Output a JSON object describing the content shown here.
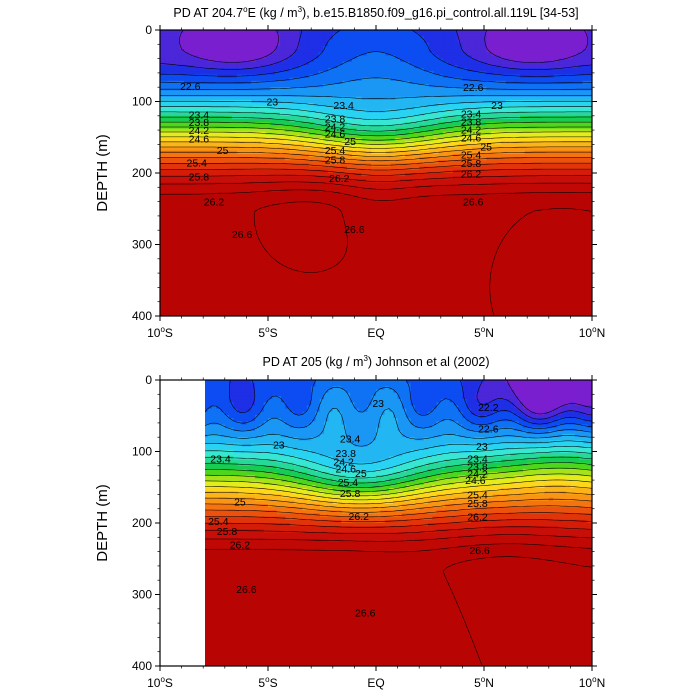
{
  "chart_data": [
    {
      "type": "contour",
      "title_prefix": "PD AT 204.7",
      "title_degree": "o",
      "title_mid": "E (kg / m",
      "title_sup": "3",
      "title_suffix": "), b.e15.B1850.f09_g16.pi_control.all.119L [34-53]",
      "ylabel": "DEPTH (m)",
      "yticks": [
        "0",
        "100",
        "200",
        "300",
        "400"
      ],
      "ylim": [
        400,
        0
      ],
      "xlim": [
        -10,
        10
      ],
      "xticks": [
        {
          "value": -10,
          "text": "10",
          "deg": "o",
          "hemi": "S"
        },
        {
          "value": -5,
          "text": "5",
          "deg": "o",
          "hemi": "S"
        },
        {
          "value": 0,
          "text": "EQ",
          "deg": "",
          "hemi": ""
        },
        {
          "value": 5,
          "text": "5",
          "deg": "o",
          "hemi": "N"
        },
        {
          "value": 10,
          "text": "10",
          "deg": "o",
          "hemi": "N"
        }
      ],
      "contour_interval": 0.2,
      "levels_from": 22.2,
      "levels_to": 26.8,
      "contour_labels": [
        {
          "text": "22.6",
          "x": -8.6,
          "y": 78
        },
        {
          "text": "23",
          "x": -4.8,
          "y": 100
        },
        {
          "text": "23.4",
          "x": -8.2,
          "y": 118
        },
        {
          "text": "23.8",
          "x": -8.2,
          "y": 129
        },
        {
          "text": "24.2",
          "x": -8.2,
          "y": 140
        },
        {
          "text": "24.6",
          "x": -8.2,
          "y": 152
        },
        {
          "text": "25",
          "x": -7.1,
          "y": 168
        },
        {
          "text": "25.4",
          "x": -8.3,
          "y": 185
        },
        {
          "text": "25.8",
          "x": -8.2,
          "y": 205
        },
        {
          "text": "26.2",
          "x": -7.5,
          "y": 240
        },
        {
          "text": "26.6",
          "x": -6.2,
          "y": 285
        },
        {
          "text": "23.4",
          "x": -1.5,
          "y": 105
        },
        {
          "text": "23.8",
          "x": -1.9,
          "y": 124
        },
        {
          "text": "24.2",
          "x": -1.9,
          "y": 135
        },
        {
          "text": "24.6",
          "x": -1.9,
          "y": 145
        },
        {
          "text": "25",
          "x": -1.2,
          "y": 155
        },
        {
          "text": "25.4",
          "x": -1.9,
          "y": 168
        },
        {
          "text": "25.8",
          "x": -1.9,
          "y": 181
        },
        {
          "text": "26.2",
          "x": -1.7,
          "y": 207
        },
        {
          "text": "26.6",
          "x": -1.0,
          "y": 278
        },
        {
          "text": "22.6",
          "x": 4.5,
          "y": 80
        },
        {
          "text": "23",
          "x": 5.6,
          "y": 105
        },
        {
          "text": "23.4",
          "x": 4.4,
          "y": 117
        },
        {
          "text": "23.8",
          "x": 4.4,
          "y": 128
        },
        {
          "text": "24.2",
          "x": 4.4,
          "y": 139
        },
        {
          "text": "24.6",
          "x": 4.4,
          "y": 150
        },
        {
          "text": "25",
          "x": 5.1,
          "y": 163
        },
        {
          "text": "25.4",
          "x": 4.4,
          "y": 174
        },
        {
          "text": "25.8",
          "x": 4.4,
          "y": 186
        },
        {
          "text": "26.2",
          "x": 4.4,
          "y": 201
        },
        {
          "text": "26.6",
          "x": 4.5,
          "y": 240
        }
      ]
    },
    {
      "type": "contour",
      "title_prefix": "PD AT 205 (kg / m",
      "title_sup": "3",
      "title_suffix": ") Johnson et al (2002)",
      "ylabel": "DEPTH (m)",
      "yticks": [
        "0",
        "100",
        "200",
        "300",
        "400"
      ],
      "ylim": [
        400,
        0
      ],
      "xlim": [
        -10,
        10
      ],
      "data_x_start": -8,
      "xticks": [
        {
          "value": -10,
          "text": "10",
          "deg": "o",
          "hemi": "S"
        },
        {
          "value": -5,
          "text": "5",
          "deg": "o",
          "hemi": "S"
        },
        {
          "value": 0,
          "text": "EQ",
          "deg": "",
          "hemi": ""
        },
        {
          "value": 5,
          "text": "5",
          "deg": "o",
          "hemi": "N"
        },
        {
          "value": 10,
          "text": "10",
          "deg": "o",
          "hemi": "N"
        }
      ],
      "contour_interval": 0.2,
      "levels_from": 22.2,
      "levels_to": 26.8,
      "contour_labels": [
        {
          "text": "23",
          "x": -4.5,
          "y": 90
        },
        {
          "text": "23.4",
          "x": -7.2,
          "y": 110
        },
        {
          "text": "25",
          "x": -6.3,
          "y": 170
        },
        {
          "text": "25.4",
          "x": -7.3,
          "y": 197
        },
        {
          "text": "25.8",
          "x": -6.9,
          "y": 211
        },
        {
          "text": "26.2",
          "x": -6.3,
          "y": 230
        },
        {
          "text": "26.6",
          "x": -6.0,
          "y": 292
        },
        {
          "text": "23",
          "x": 0.1,
          "y": 32
        },
        {
          "text": "23.4",
          "x": -1.2,
          "y": 82
        },
        {
          "text": "23.8",
          "x": -1.4,
          "y": 102
        },
        {
          "text": "24.2",
          "x": -1.5,
          "y": 114
        },
        {
          "text": "24.6",
          "x": -1.4,
          "y": 124
        },
        {
          "text": "25",
          "x": -0.7,
          "y": 130
        },
        {
          "text": "25.4",
          "x": -1.3,
          "y": 143
        },
        {
          "text": "25.8",
          "x": -1.2,
          "y": 158
        },
        {
          "text": "26.2",
          "x": -0.8,
          "y": 190
        },
        {
          "text": "26.6",
          "x": -0.5,
          "y": 325
        },
        {
          "text": "22.2",
          "x": 5.2,
          "y": 38
        },
        {
          "text": "22.6",
          "x": 5.2,
          "y": 68
        },
        {
          "text": "23",
          "x": 4.9,
          "y": 92
        },
        {
          "text": "23.4",
          "x": 4.7,
          "y": 110
        },
        {
          "text": "23.8",
          "x": 4.7,
          "y": 121
        },
        {
          "text": "24.2",
          "x": 4.7,
          "y": 131
        },
        {
          "text": "24.6",
          "x": 4.6,
          "y": 140
        },
        {
          "text": "25.4",
          "x": 4.7,
          "y": 160
        },
        {
          "text": "25.8",
          "x": 4.7,
          "y": 172
        },
        {
          "text": "26.2",
          "x": 4.7,
          "y": 191
        },
        {
          "text": "26.6",
          "x": 4.8,
          "y": 238
        }
      ]
    }
  ]
}
